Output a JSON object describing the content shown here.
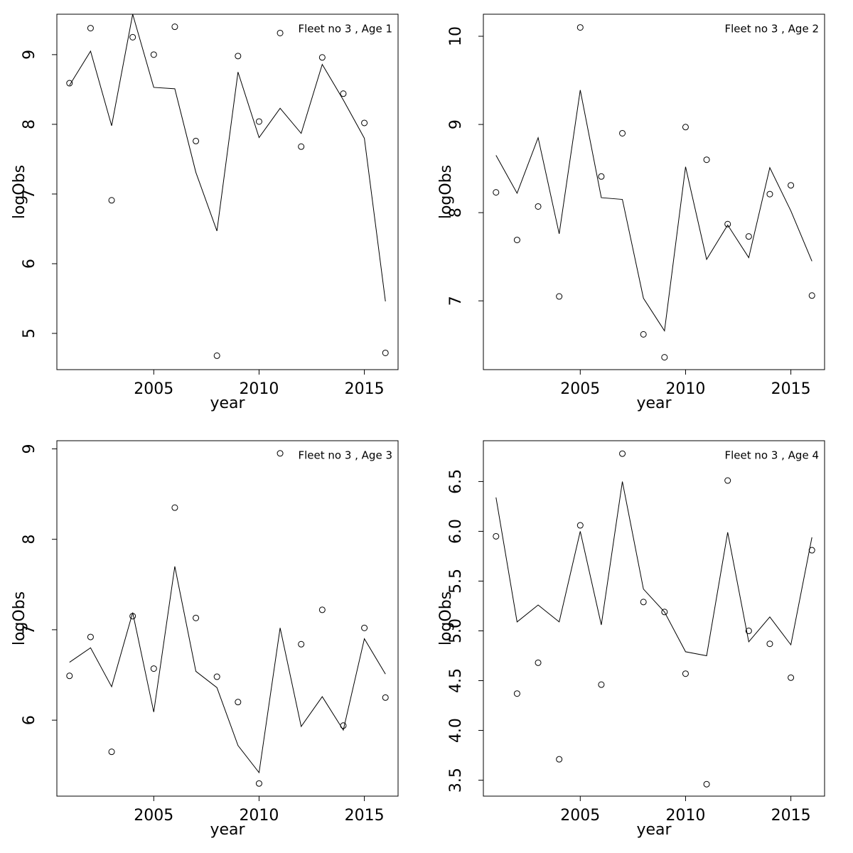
{
  "chart_data": [
    {
      "type": "line",
      "annotation": "Fleet no 3 , Age 1",
      "xlabel": "year",
      "ylabel": "logObs",
      "x": [
        2001,
        2002,
        2003,
        2004,
        2005,
        2006,
        2007,
        2008,
        2009,
        2010,
        2011,
        2012,
        2013,
        2014,
        2015,
        2016
      ],
      "xlim": [
        2000.4,
        2016.6
      ],
      "xticks": [
        2005,
        2010,
        2015
      ],
      "ylim": [
        4.48,
        9.58
      ],
      "yticks": [
        5,
        6,
        7,
        8,
        9
      ],
      "series": [
        {
          "mode": "points",
          "color": "#000000",
          "values": [
            8.59,
            9.38,
            6.91,
            9.25,
            9.0,
            9.4,
            7.76,
            4.68,
            8.98,
            8.04,
            9.31,
            7.68,
            8.96,
            8.44,
            8.02,
            4.72
          ]
        },
        {
          "mode": "line",
          "color": "#000000",
          "values": [
            8.56,
            9.05,
            7.98,
            9.58,
            8.53,
            8.51,
            7.31,
            6.47,
            8.75,
            7.81,
            8.23,
            7.87,
            8.86,
            8.35,
            7.8,
            5.46
          ]
        }
      ]
    },
    {
      "type": "line",
      "annotation": "Fleet no 3 , Age 2",
      "xlabel": "year",
      "ylabel": "logObs",
      "x": [
        2001,
        2002,
        2003,
        2004,
        2005,
        2006,
        2007,
        2008,
        2009,
        2010,
        2011,
        2012,
        2013,
        2014,
        2015,
        2016
      ],
      "xlim": [
        2000.4,
        2016.6
      ],
      "xticks": [
        2005,
        2010,
        2015
      ],
      "ylim": [
        6.22,
        10.25
      ],
      "yticks": [
        7,
        8,
        9,
        10
      ],
      "series": [
        {
          "mode": "points",
          "color": "#000000",
          "values": [
            8.23,
            7.69,
            8.07,
            7.05,
            10.1,
            8.41,
            8.9,
            6.62,
            6.36,
            8.97,
            8.6,
            7.87,
            7.73,
            8.21,
            8.31,
            7.06
          ]
        },
        {
          "mode": "line",
          "color": "#000000",
          "values": [
            8.65,
            8.22,
            8.85,
            7.76,
            9.39,
            8.17,
            8.15,
            7.03,
            6.66,
            8.52,
            7.47,
            7.86,
            7.49,
            8.51,
            8.02,
            7.45
          ]
        }
      ]
    },
    {
      "type": "line",
      "annotation": "Fleet no 3 , Age 3",
      "xlabel": "year",
      "ylabel": "logObs",
      "x": [
        2001,
        2002,
        2003,
        2004,
        2005,
        2006,
        2007,
        2008,
        2009,
        2010,
        2011,
        2012,
        2013,
        2014,
        2015,
        2016
      ],
      "xlim": [
        2000.4,
        2016.6
      ],
      "xticks": [
        2005,
        2010,
        2015
      ],
      "ylim": [
        5.16,
        9.09
      ],
      "yticks": [
        6,
        7,
        8,
        9
      ],
      "series": [
        {
          "mode": "points",
          "color": "#000000",
          "values": [
            6.49,
            6.92,
            5.65,
            7.15,
            6.57,
            8.35,
            7.13,
            6.48,
            6.2,
            5.3,
            8.95,
            6.84,
            7.22,
            5.94,
            7.02,
            6.25
          ]
        },
        {
          "mode": "line",
          "color": "#000000",
          "values": [
            6.64,
            6.8,
            6.37,
            7.19,
            6.09,
            7.7,
            6.54,
            6.36,
            5.72,
            5.42,
            7.02,
            5.93,
            6.26,
            5.89,
            6.9,
            6.51
          ]
        }
      ]
    },
    {
      "type": "line",
      "annotation": "Fleet no 3 , Age 4",
      "xlabel": "year",
      "ylabel": "logObs",
      "x": [
        2001,
        2002,
        2003,
        2004,
        2005,
        2006,
        2007,
        2008,
        2009,
        2010,
        2011,
        2012,
        2013,
        2014,
        2015,
        2016
      ],
      "xlim": [
        2000.4,
        2016.6
      ],
      "xticks": [
        2005,
        2010,
        2015
      ],
      "ylim": [
        3.34,
        6.91
      ],
      "yticks": [
        {
          "value": 3.5,
          "label": "3.5"
        },
        {
          "value": 4,
          "label": "4.0"
        },
        {
          "value": 4.5,
          "label": "4.5"
        },
        {
          "value": 5,
          "label": "5.0"
        },
        {
          "value": 5.5,
          "label": "5.5"
        },
        {
          "value": 6,
          "label": "6.0"
        },
        {
          "value": 6.5,
          "label": "6.5"
        }
      ],
      "series": [
        {
          "mode": "points",
          "color": "#000000",
          "values": [
            5.95,
            4.37,
            4.68,
            3.71,
            6.06,
            4.46,
            6.78,
            5.29,
            5.19,
            4.57,
            3.46,
            6.51,
            5.0,
            4.87,
            4.53,
            5.81
          ]
        },
        {
          "mode": "line",
          "color": "#000000",
          "values": [
            6.34,
            5.09,
            5.26,
            5.09,
            6.0,
            5.06,
            6.5,
            5.42,
            5.19,
            4.79,
            4.75,
            5.99,
            4.89,
            5.14,
            4.86,
            5.94
          ]
        }
      ]
    }
  ]
}
